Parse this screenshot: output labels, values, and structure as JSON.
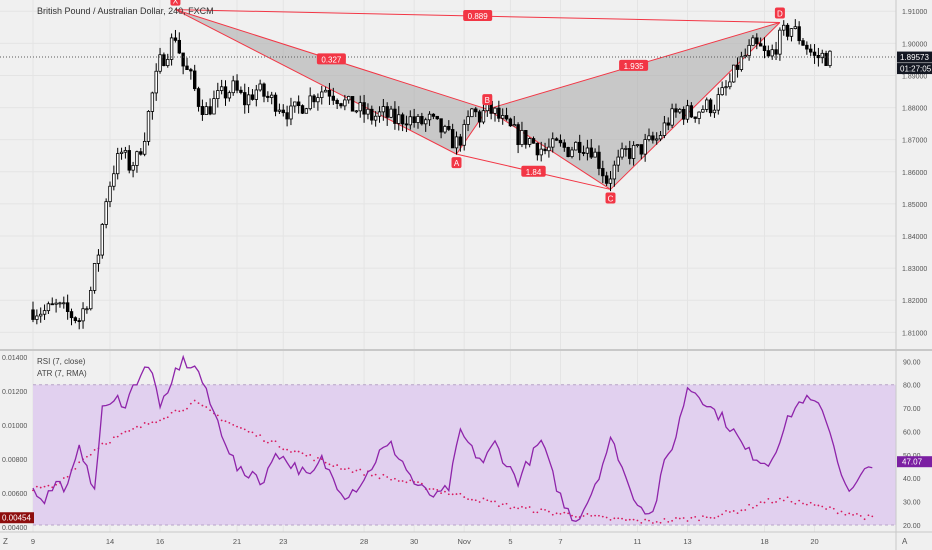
{
  "window": {
    "symbol_title": "British Pound / Australian Dollar, 240, FXCM",
    "corner_left": "Z",
    "corner_right": "A"
  },
  "colors": {
    "bg": "#f0f0f0",
    "candle": "#000000",
    "pattern_line": "#f23645",
    "pattern_fill": "#a8a8a8",
    "rsi_line": "#8e24aa",
    "rsi_band": "#e1d0ef",
    "atr_dots": "#d81b60",
    "price_tag_bg": "#131722",
    "rsi_tag_bg": "#7b1fa2",
    "atr_tag_bg": "#8e0e0e"
  },
  "chart_data": [
    {
      "type": "candlestick",
      "name": "price",
      "title": "British Pound / Australian Dollar, 240, FXCM",
      "y_ticks": [
        "1.91000",
        "1.90000",
        "1.89000",
        "1.88000",
        "1.87000",
        "1.86000",
        "1.85000",
        "1.84000",
        "1.83000",
        "1.82000",
        "1.81000"
      ],
      "y_tick_values": [
        1.91,
        1.9,
        1.89,
        1.88,
        1.87,
        1.86,
        1.85,
        1.84,
        1.83,
        1.82,
        1.81
      ],
      "ylim": [
        1.8045,
        1.9135
      ],
      "x_ticks": [
        {
          "label": "9",
          "idx": 0
        },
        {
          "label": "14",
          "idx": 20
        },
        {
          "label": "16",
          "idx": 33
        },
        {
          "label": "21",
          "idx": 53
        },
        {
          "label": "23",
          "idx": 65
        },
        {
          "label": "28",
          "idx": 86
        },
        {
          "label": "30",
          "idx": 99
        },
        {
          "label": "Nov",
          "idx": 112
        },
        {
          "label": "5",
          "idx": 124
        },
        {
          "label": "7",
          "idx": 137
        },
        {
          "label": "11",
          "idx": 157
        },
        {
          "label": "13",
          "idx": 170
        },
        {
          "label": "18",
          "idx": 190
        },
        {
          "label": "20",
          "idx": 203
        }
      ],
      "current_price": "1.89573",
      "current_price_value": 1.89573,
      "countdown": "01:27:05",
      "harmonic_points": [
        {
          "label": "X",
          "idx": 37,
          "price": 1.9105,
          "pos": "above"
        },
        {
          "label": "A",
          "idx": 110,
          "price": 1.8655,
          "pos": "below"
        },
        {
          "label": "B",
          "idx": 118,
          "price": 1.8795,
          "pos": "above"
        },
        {
          "label": "C",
          "idx": 150,
          "price": 1.8545,
          "pos": "below"
        },
        {
          "label": "D",
          "idx": 194,
          "price": 1.9065,
          "pos": "above"
        }
      ],
      "ratios": [
        {
          "label": "0.889",
          "between": [
            "X",
            "D"
          ]
        },
        {
          "label": "0.327",
          "between": [
            "X",
            "B"
          ]
        },
        {
          "label": "1.84",
          "between": [
            "A",
            "C"
          ]
        },
        {
          "label": "1.935",
          "between": [
            "B",
            "D"
          ]
        }
      ],
      "anchors": [
        [
          0,
          1.817
        ],
        [
          3,
          1.8165
        ],
        [
          6,
          1.818
        ],
        [
          9,
          1.816
        ],
        [
          12,
          1.814
        ],
        [
          15,
          1.823
        ],
        [
          17,
          1.835
        ],
        [
          19,
          1.852
        ],
        [
          21,
          1.861
        ],
        [
          23,
          1.866
        ],
        [
          25,
          1.862
        ],
        [
          27,
          1.864
        ],
        [
          29,
          1.872
        ],
        [
          31,
          1.884
        ],
        [
          33,
          1.894
        ],
        [
          35,
          1.898
        ],
        [
          37,
          1.9025
        ],
        [
          39,
          1.893
        ],
        [
          41,
          1.889
        ],
        [
          43,
          1.882
        ],
        [
          45,
          1.879
        ],
        [
          48,
          1.883
        ],
        [
          52,
          1.886
        ],
        [
          55,
          1.882
        ],
        [
          58,
          1.8855
        ],
        [
          61,
          1.883
        ],
        [
          64,
          1.881
        ],
        [
          67,
          1.878
        ],
        [
          70,
          1.881
        ],
        [
          73,
          1.884
        ],
        [
          76,
          1.886
        ],
        [
          79,
          1.8835
        ],
        [
          82,
          1.8805
        ],
        [
          85,
          1.879
        ],
        [
          88,
          1.877
        ],
        [
          91,
          1.878
        ],
        [
          94,
          1.876
        ],
        [
          97,
          1.877
        ],
        [
          100,
          1.875
        ],
        [
          103,
          1.876
        ],
        [
          106,
          1.873
        ],
        [
          108,
          1.8705
        ],
        [
          110,
          1.869
        ],
        [
          112,
          1.872
        ],
        [
          114,
          1.879
        ],
        [
          116,
          1.877
        ],
        [
          118,
          1.8795
        ],
        [
          120,
          1.878
        ],
        [
          123,
          1.874
        ],
        [
          126,
          1.871
        ],
        [
          129,
          1.87
        ],
        [
          131,
          1.868
        ],
        [
          133,
          1.8665
        ],
        [
          136,
          1.868
        ],
        [
          139,
          1.867
        ],
        [
          142,
          1.869
        ],
        [
          145,
          1.8675
        ],
        [
          147,
          1.863
        ],
        [
          149,
          1.8575
        ],
        [
          151,
          1.861
        ],
        [
          154,
          1.866
        ],
        [
          157,
          1.8665
        ],
        [
          160,
          1.869
        ],
        [
          162,
          1.87
        ],
        [
          165,
          1.876
        ],
        [
          168,
          1.879
        ],
        [
          171,
          1.878
        ],
        [
          174,
          1.88
        ],
        [
          177,
          1.881
        ],
        [
          179,
          1.884
        ],
        [
          181,
          1.8875
        ],
        [
          183,
          1.893
        ],
        [
          185,
          1.896
        ],
        [
          187,
          1.899
        ],
        [
          189,
          1.898
        ],
        [
          191,
          1.895
        ],
        [
          193,
          1.8995
        ],
        [
          195,
          1.903
        ],
        [
          197,
          1.905
        ],
        [
          199,
          1.902
        ],
        [
          201,
          1.899
        ],
        [
          203,
          1.8955
        ],
        [
          205,
          1.896
        ],
        [
          207,
          1.8955
        ]
      ],
      "candle_count": 208
    },
    {
      "type": "line",
      "name": "indicators",
      "legend": [
        "RSI (7, close)",
        "ATR (7, RMA)"
      ],
      "rsi_ticks": [
        "90.00",
        "80.00",
        "70.00",
        "60.00",
        "50.00",
        "40.00",
        "30.00",
        "20.00"
      ],
      "rsi_tick_values": [
        90,
        80,
        70,
        60,
        50,
        40,
        30,
        20
      ],
      "rsi_band": [
        20,
        80
      ],
      "rsi_ylim": [
        17,
        94
      ],
      "atr_ticks": [
        "0.01400",
        "0.01200",
        "0.01000",
        "0.00800",
        "0.00600",
        "0.00400"
      ],
      "atr_tick_values": [
        0.014,
        0.012,
        0.01,
        0.008,
        0.006,
        0.004
      ],
      "atr_ylim": [
        0.0037,
        0.0143
      ],
      "rsi_last": "47.07",
      "atr_last": "0.00454",
      "rsi_anchors": [
        [
          0,
          35
        ],
        [
          3,
          31
        ],
        [
          6,
          38
        ],
        [
          9,
          36
        ],
        [
          12,
          52
        ],
        [
          14,
          47
        ],
        [
          16,
          33
        ],
        [
          18,
          72
        ],
        [
          20,
          70
        ],
        [
          22,
          74
        ],
        [
          24,
          72
        ],
        [
          27,
          82
        ],
        [
          29,
          88
        ],
        [
          31,
          84
        ],
        [
          33,
          72
        ],
        [
          35,
          74
        ],
        [
          37,
          86
        ],
        [
          39,
          90
        ],
        [
          41,
          88
        ],
        [
          43,
          86
        ],
        [
          45,
          76
        ],
        [
          47,
          68
        ],
        [
          49,
          60
        ],
        [
          51,
          52
        ],
        [
          53,
          44
        ],
        [
          55,
          41
        ],
        [
          57,
          43
        ],
        [
          60,
          38
        ],
        [
          63,
          52
        ],
        [
          66,
          47
        ],
        [
          69,
          44
        ],
        [
          72,
          40
        ],
        [
          75,
          48
        ],
        [
          78,
          40
        ],
        [
          81,
          33
        ],
        [
          84,
          36
        ],
        [
          87,
          42
        ],
        [
          90,
          51
        ],
        [
          93,
          54
        ],
        [
          96,
          47
        ],
        [
          99,
          38
        ],
        [
          102,
          34
        ],
        [
          105,
          32
        ],
        [
          108,
          36
        ],
        [
          111,
          60
        ],
        [
          114,
          52
        ],
        [
          117,
          47
        ],
        [
          120,
          55
        ],
        [
          123,
          46
        ],
        [
          126,
          39
        ],
        [
          129,
          48
        ],
        [
          132,
          56
        ],
        [
          135,
          41
        ],
        [
          138,
          28
        ],
        [
          141,
          22
        ],
        [
          144,
          30
        ],
        [
          147,
          42
        ],
        [
          150,
          56
        ],
        [
          152,
          50
        ],
        [
          155,
          35
        ],
        [
          158,
          28
        ],
        [
          161,
          25
        ],
        [
          164,
          46
        ],
        [
          167,
          58
        ],
        [
          170,
          79
        ],
        [
          173,
          76
        ],
        [
          176,
          70
        ],
        [
          179,
          66
        ],
        [
          182,
          60
        ],
        [
          185,
          52
        ],
        [
          188,
          49
        ],
        [
          191,
          46
        ],
        [
          194,
          57
        ],
        [
          197,
          68
        ],
        [
          200,
          74
        ],
        [
          203,
          72
        ],
        [
          206,
          66
        ],
        [
          209,
          48
        ],
        [
          212,
          33
        ],
        [
          215,
          40
        ],
        [
          218,
          47
        ]
      ],
      "atr_anchors": [
        [
          0,
          0.0062
        ],
        [
          6,
          0.0064
        ],
        [
          12,
          0.0078
        ],
        [
          18,
          0.0089
        ],
        [
          24,
          0.0095
        ],
        [
          30,
          0.0101
        ],
        [
          36,
          0.0107
        ],
        [
          42,
          0.0113
        ],
        [
          46,
          0.0108
        ],
        [
          52,
          0.01
        ],
        [
          58,
          0.0094
        ],
        [
          64,
          0.0088
        ],
        [
          70,
          0.0083
        ],
        [
          76,
          0.0078
        ],
        [
          82,
          0.0074
        ],
        [
          88,
          0.0071
        ],
        [
          94,
          0.0068
        ],
        [
          100,
          0.0065
        ],
        [
          106,
          0.0061
        ],
        [
          112,
          0.0058
        ],
        [
          118,
          0.0055
        ],
        [
          124,
          0.0052
        ],
        [
          130,
          0.005
        ],
        [
          136,
          0.0048
        ],
        [
          142,
          0.0047
        ],
        [
          148,
          0.0045
        ],
        [
          154,
          0.0044
        ],
        [
          160,
          0.0043
        ],
        [
          166,
          0.0044
        ],
        [
          172,
          0.0045
        ],
        [
          178,
          0.0047
        ],
        [
          184,
          0.005
        ],
        [
          190,
          0.0055
        ],
        [
          196,
          0.0056
        ],
        [
          202,
          0.0053
        ],
        [
          208,
          0.005
        ],
        [
          214,
          0.0047
        ],
        [
          218,
          0.0045
        ]
      ]
    }
  ]
}
